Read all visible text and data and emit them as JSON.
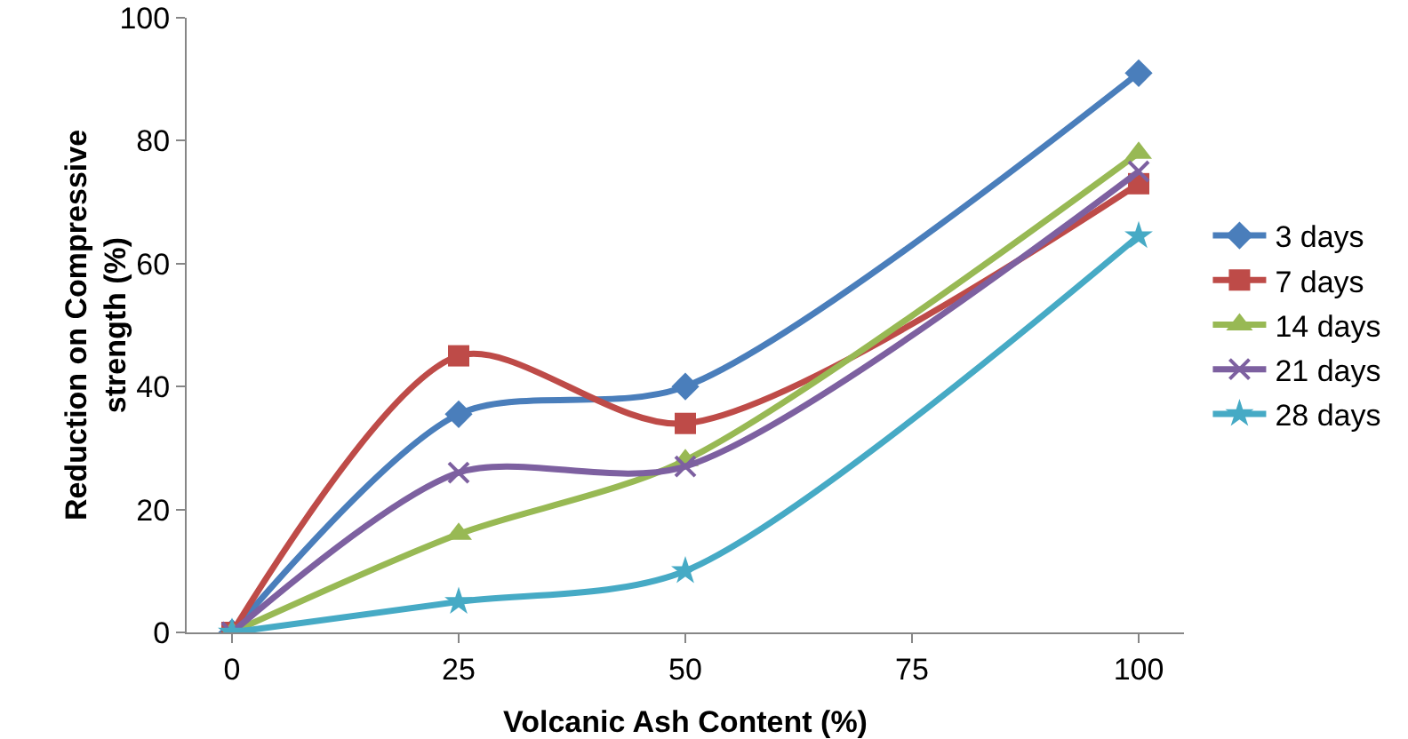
{
  "chart_data": {
    "type": "line",
    "xlabel": "Volcanic Ash Content (%)",
    "ylabel": "Reduction on Compressive strength (%)",
    "x": [
      0,
      25,
      50,
      100
    ],
    "xlim": [
      -5,
      105
    ],
    "xticks": [
      0,
      25,
      50,
      75,
      100
    ],
    "ylim": [
      0,
      100
    ],
    "yticks": [
      0,
      20,
      40,
      60,
      80,
      100
    ],
    "grid": false,
    "legend": "right",
    "line_style": "solid",
    "series": [
      {
        "name": "3 days",
        "color": "#4a7ebb",
        "marker": "diamond",
        "values": [
          0,
          35.5,
          40,
          91
        ]
      },
      {
        "name": "7 days",
        "color": "#be4b48",
        "marker": "square",
        "values": [
          0,
          45,
          34,
          73
        ]
      },
      {
        "name": "14 days",
        "color": "#98b954",
        "marker": "triangle",
        "values": [
          0,
          16,
          28,
          78
        ]
      },
      {
        "name": "21 days",
        "color": "#7d60a0",
        "marker": "cross",
        "values": [
          0,
          26,
          27,
          75
        ]
      },
      {
        "name": "28 days",
        "color": "#46aac5",
        "marker": "star",
        "values": [
          0,
          5,
          10,
          64.5
        ]
      }
    ]
  }
}
